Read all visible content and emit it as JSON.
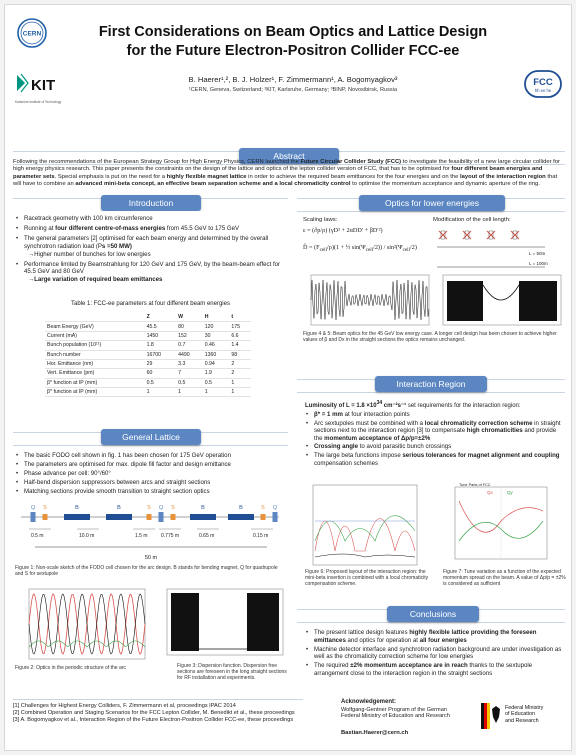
{
  "header": {
    "title_line1": "First Considerations on Beam Optics and Lattice Design",
    "title_line2": "for the Future Electron-Positron Collider FCC-ee",
    "authors": "B. Haerer¹,², B. J. Holzer¹, F. Zimmermann¹, A. Bogomyagkov³",
    "affiliations": "¹CERN, Geneva, Switzerland; ²KIT, Karlsruhe, Germany; ³BINP, Novosibirsk, Russia",
    "cern_logo": "CERN",
    "kit_logo": "KIT",
    "kit_sub": "Karlsruhe Institute of Technology",
    "fcc_logo": "FCC",
    "fcc_sub": "hh ee he"
  },
  "abstract": {
    "heading": "Abstract",
    "p1": "Following the recommendations of the European Strategy Group for High Energy Physics, CERN launched the ",
    "b1": "Future Circular Collider Study (FCC)",
    "p2": " to investigate the feasibility of a new large circular collider for high energy physics research. This paper presents the constraints on the design of the lattice and optics of the lepton collider version of FCC, that has to be optimised for ",
    "b2": "four different beam energies and parameter sets",
    "p3": ". Special emphasis is put on the need for a ",
    "b3": "highly flexible magnet lattice",
    "p4": " in order to achieve the required beam emittances for the four energies and on the ",
    "b4": "layout of the interaction region",
    "p5": " that will have to combine an ",
    "b5": "advanced mini-beta concept, an effective beam separation scheme and a local chromaticity control",
    "p6": " to optimise the momentum acceptance and dynamic aperture of the ring."
  },
  "intro": {
    "heading": "Introduction",
    "b1": "Racetrack geometry with 100 km circumference",
    "b2_pre": "Running at ",
    "b2_bold": "four different centre-of-mass energies",
    "b2_post": " from 45.5 GeV to 175 GeV",
    "b3": "The general parameters [2] optimised for each beam energy and determined by the overall synchrotron radiation load (P",
    "b3_bold": "s =50 MW)",
    "b3_sub": "→Higher number of bunches for low energies",
    "b4": "Performance limited by Beamstrahlung for 120 GeV and 175 GeV, by the beam-beam effect for 45.5 GeV and 80 GeV",
    "b4_sub": "→Large variation of required beam emittances",
    "table_caption": "Table 1: FCC-ee parameters at four different beam energies",
    "table_head": [
      "",
      "Z",
      "W",
      "H",
      "t"
    ],
    "table_rows": [
      [
        "Beam Energy (GeV)",
        "45.5",
        "80",
        "120",
        "175"
      ],
      [
        "Current (mA)",
        "1450",
        "152",
        "30",
        "6.6"
      ],
      [
        "Bunch population (10¹¹)",
        "1.8",
        "0.7",
        "0.46",
        "1.4"
      ],
      [
        "Bunch number",
        "16700",
        "4490",
        "1360",
        "98"
      ],
      [
        "Hor. Emittance (nm)",
        "29",
        "3.3",
        "0.94",
        "2"
      ],
      [
        "Vert. Emittance (pm)",
        "60",
        "7",
        "1.9",
        "2"
      ],
      [
        "β* function at IP (mm)",
        "0.5",
        "0.5",
        "0.5",
        "1"
      ],
      [
        "β* function at IP (mm)",
        "1",
        "1",
        "1",
        "1"
      ]
    ]
  },
  "lattice": {
    "heading": "General Lattice",
    "b1": "The basic FODO cell shown in fig. 1 has been chosen for 175 GeV operation",
    "b2": "The parameters are optimised for max. dipole fill factor and design emittance",
    "b3": "Phase advance per cell: 90°/60°",
    "b4": "Half-bend dispersion suppressors between arcs and straight sections",
    "b5": "Matching sections provide smooth transition to straight section optics",
    "cell_labels": [
      "Q",
      "S",
      "B",
      "B",
      "S",
      "Q",
      "S",
      "B",
      "B",
      "S",
      "Q"
    ],
    "dims": [
      "0.5 m",
      "10.0 m",
      "1.5 m",
      "0.775 m",
      "0.65 m",
      "0.15 m"
    ],
    "total": "50 m",
    "fig1_caption": "Figure 1: Non-scale sketch of the FODO cell chosen for the arc design. B stands for bending magnet, Q for quadrupole and S for sextupole",
    "fig2_caption": "Figure 2: Optics in the periodic structure of the arc",
    "fig3_caption": "Figure 3: Dispersion function. Dispersion free sections are foreseen in the long straight sections for RF installation and experiments."
  },
  "optics": {
    "heading": "Optics for lower energies",
    "scaling": "Scaling laws:",
    "modif": "Modification of the cell length:",
    "L50": "L = 50m",
    "L100": "L = 100m",
    "fig45_caption": "Figure 4 & 5: Beam optics for the 45 GeV low energy case. A longer cell design has been chosen to achieve higher values of β and Dx in the straight sections the optics remains unchanged."
  },
  "ir": {
    "heading": "Interaction Region",
    "lumi_pre": "Luminosity of L = 1.8 ×10",
    "lumi_sup": "34",
    "lumi_unit": " cm⁻²s⁻¹",
    "lumi_post": " set requirements for the interaction region:",
    "b1_bold": "β* = 1 mm",
    "b1": " at four interaction points",
    "b2": "Arc sextupoles must be combined with a ",
    "b2_bold": "local chromaticity correction scheme",
    "b2_post": " in straight sections next to the interaction region [3] to compensate ",
    "b2_bold2": "high chromaticities",
    "b2_post2": " and provide the ",
    "b2_bold3": "momentum acceptance of Δp/p=±2%",
    "b3_bold": "Crossing angle",
    "b3": " to avoid parasitic bunch crossings",
    "b4": "The large beta functions impose ",
    "b4_bold": "serious tolerances for magnet alignment and coupling",
    "b4_post": " compensation schemes",
    "fig6_caption": "Figure 6: Proposed layout of the interaction region: the mini-beta insertion is combined with a local chromaticity compensation scheme.",
    "fig7_caption": "Figure 7: Tune variation as a function of the expected momentum spread on the beam. A value of Δp/p = ±2% is considered as sufficient",
    "fig7_title": "Tune Parts of FCC",
    "fig7_ql": "Qx",
    "fig7_qr": "Qy"
  },
  "conclusions": {
    "heading": "Conclusions",
    "b1_pre": "The present lattice design features ",
    "b1_bold": "highly flexible lattice providing the foreseen emittances",
    "b1_post": " and optics for operation at ",
    "b1_bold2": "all four energies",
    "b2": "Machine detector interface and synchrotron radiation background are under investigation as well as the chromaticity correction scheme for low energies",
    "b3_pre": "The required ",
    "b3_bold": "±2% momentum acceptance are in reach",
    "b3_post": " thanks to the sextupole arrangement close to the interaction region in the straight sections"
  },
  "refs": {
    "r1": "[1] Challenges for Highest Energy Colliders, F. Zimmermann et al, proceedings IPAC 2014",
    "r2": "[2] Combined Operation and Staging Scenarios for the FCC Lepton Collider, M. Benedikt et al., these proceedings",
    "r3": "[3] A. Bogomyagkov et al., Interaction Region of the Future Electron-Positron Collider FCC-ee, these proceedings"
  },
  "ack": {
    "heading": "Acknowledgement:",
    "l1": "Wolfgang-Gentner Program of the German",
    "l2": "Federal Ministry of Education and Research",
    "email": "Bastian.Haerer@cern.ch",
    "bmbf1": "Federal Ministry",
    "bmbf2": "of Education",
    "bmbf3": "and Research"
  },
  "colors": {
    "accent": "#5b86c2",
    "red": "#d9534f",
    "black": "#111111",
    "green": "#3aa34a"
  }
}
